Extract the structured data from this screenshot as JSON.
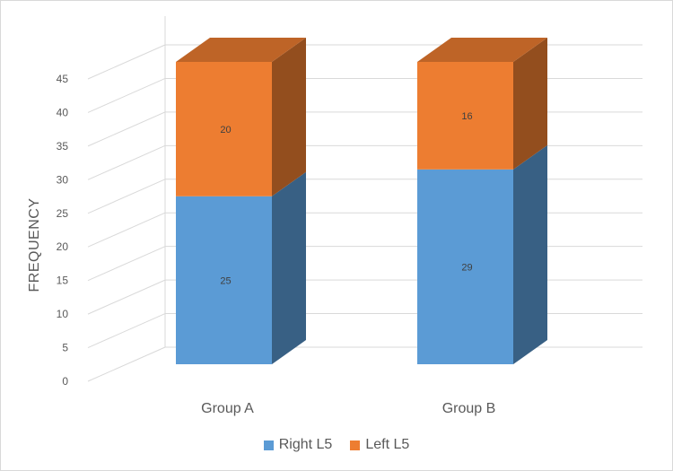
{
  "chart_data": {
    "type": "bar",
    "stacked": true,
    "three_d": true,
    "categories": [
      "Group A",
      "Group B"
    ],
    "series": [
      {
        "name": "Right L5",
        "values": [
          25,
          29
        ],
        "color": "#5b9bd5"
      },
      {
        "name": "Left L5",
        "values": [
          20,
          16
        ],
        "color": "#ed7d31"
      }
    ],
    "ylabel": "FREQUENCY",
    "xlabel": "",
    "ylim": [
      0,
      45
    ],
    "yticks": [
      0,
      5,
      10,
      15,
      20,
      25,
      30,
      35,
      40,
      45
    ],
    "grid": true,
    "legend": "bottom",
    "data_labels": true
  }
}
